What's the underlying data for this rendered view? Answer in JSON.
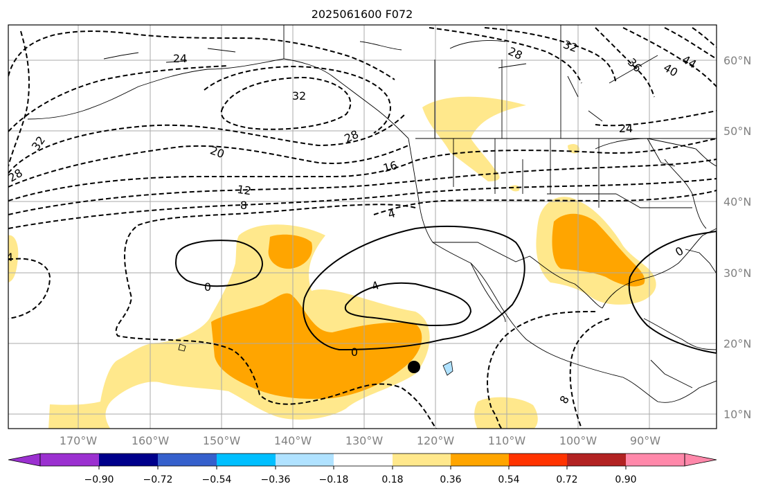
{
  "title": "2025061600 F072",
  "lon_labels": [
    "170°W",
    "160°W",
    "150°W",
    "140°W",
    "130°W",
    "120°W",
    "110°W",
    "100°W",
    "90°W"
  ],
  "lat_labels": [
    "60°N",
    "50°N",
    "40°N",
    "30°N",
    "20°N",
    "10°N"
  ],
  "contour_labels": {
    "c24a": "24",
    "c32a": "32",
    "c28a": "28",
    "c32b": "32",
    "c20": "20",
    "c28b": "28",
    "c16": "16",
    "c12": "12",
    "c8a": "8",
    "c4a": "4",
    "c4b": "4",
    "c0a": "0",
    "c4c": "4",
    "c0b": "0",
    "c0c": "0",
    "c8b": "8",
    "c28c": "28",
    "c32c": "32",
    "c36": "36",
    "c40": "40",
    "c44": "44",
    "c24b": "24"
  },
  "colorbar": {
    "ticks": [
      "−0.90",
      "−0.72",
      "−0.54",
      "−0.36",
      "−0.18",
      "0.18",
      "0.36",
      "0.54",
      "0.72",
      "0.90"
    ],
    "colors": [
      "#9b30d0",
      "#00008b",
      "#3560cc",
      "#00bfff",
      "#b0e2ff",
      "#ffffff",
      "#ffe88c",
      "#ffa500",
      "#ff3300",
      "#b22222",
      "#ff88aa"
    ]
  },
  "colors": {
    "shade_light": "#ffe88c",
    "shade_dark": "#ffa500",
    "grid": "#aaaaaa",
    "label_gray": "#808080"
  }
}
